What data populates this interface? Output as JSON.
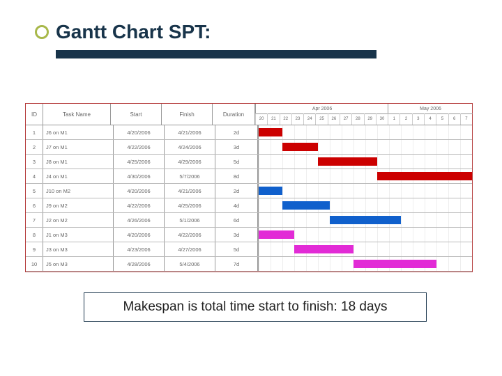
{
  "title": "Gantt Chart SPT:",
  "caption": "Makespan is total time start to finish: 18 days",
  "headers": {
    "id": "ID",
    "task": "Task Name",
    "start": "Start",
    "finish": "Finish",
    "duration": "Duration"
  },
  "timeline": {
    "total_days": 18,
    "month_groups": [
      {
        "label": "Apr 2006",
        "start": 0,
        "span": 11
      },
      {
        "label": "May 2006",
        "start": 11,
        "span": 7
      }
    ],
    "day_labels": [
      "20",
      "21",
      "22",
      "23",
      "24",
      "25",
      "26",
      "27",
      "28",
      "29",
      "30",
      "1",
      "2",
      "3",
      "4",
      "5",
      "6",
      "7"
    ]
  },
  "rows": [
    {
      "id": "1",
      "task": "J6 on M1",
      "start": "4/20/2006",
      "finish": "4/21/2006",
      "dur": "2d",
      "bar_start": 0,
      "bar_len": 2,
      "color": "#cc0000"
    },
    {
      "id": "2",
      "task": "J7 on M1",
      "start": "4/22/2006",
      "finish": "4/24/2006",
      "dur": "3d",
      "bar_start": 2,
      "bar_len": 3,
      "color": "#cc0000"
    },
    {
      "id": "3",
      "task": "J8 on M1",
      "start": "4/25/2006",
      "finish": "4/29/2006",
      "dur": "5d",
      "bar_start": 5,
      "bar_len": 5,
      "color": "#cc0000"
    },
    {
      "id": "4",
      "task": "J4 on M1",
      "start": "4/30/2006",
      "finish": "5/7/2006",
      "dur": "8d",
      "bar_start": 10,
      "bar_len": 8,
      "color": "#cc0000"
    },
    {
      "id": "5",
      "task": "J10 on M2",
      "start": "4/20/2006",
      "finish": "4/21/2006",
      "dur": "2d",
      "bar_start": 0,
      "bar_len": 2,
      "color": "#1060cc"
    },
    {
      "id": "6",
      "task": "J9 on M2",
      "start": "4/22/2006",
      "finish": "4/25/2006",
      "dur": "4d",
      "bar_start": 2,
      "bar_len": 4,
      "color": "#1060cc"
    },
    {
      "id": "7",
      "task": "J2 on M2",
      "start": "4/26/2006",
      "finish": "5/1/2006",
      "dur": "6d",
      "bar_start": 6,
      "bar_len": 6,
      "color": "#1060cc"
    },
    {
      "id": "8",
      "task": "J1 on M3",
      "start": "4/20/2006",
      "finish": "4/22/2006",
      "dur": "3d",
      "bar_start": 0,
      "bar_len": 3,
      "color": "#e22bd6"
    },
    {
      "id": "9",
      "task": "J3 on M3",
      "start": "4/23/2006",
      "finish": "4/27/2006",
      "dur": "5d",
      "bar_start": 3,
      "bar_len": 5,
      "color": "#e22bd6"
    },
    {
      "id": "10",
      "task": "J5 on M3",
      "start": "4/28/2006",
      "finish": "5/4/2006",
      "dur": "7d",
      "bar_start": 8,
      "bar_len": 7,
      "color": "#e22bd6"
    }
  ],
  "style": {
    "title_color": "#18344a",
    "underline_color": "#18344a",
    "outer_border_color": "#b43a3a",
    "bullet_ring_color": "#a8b84a"
  }
}
